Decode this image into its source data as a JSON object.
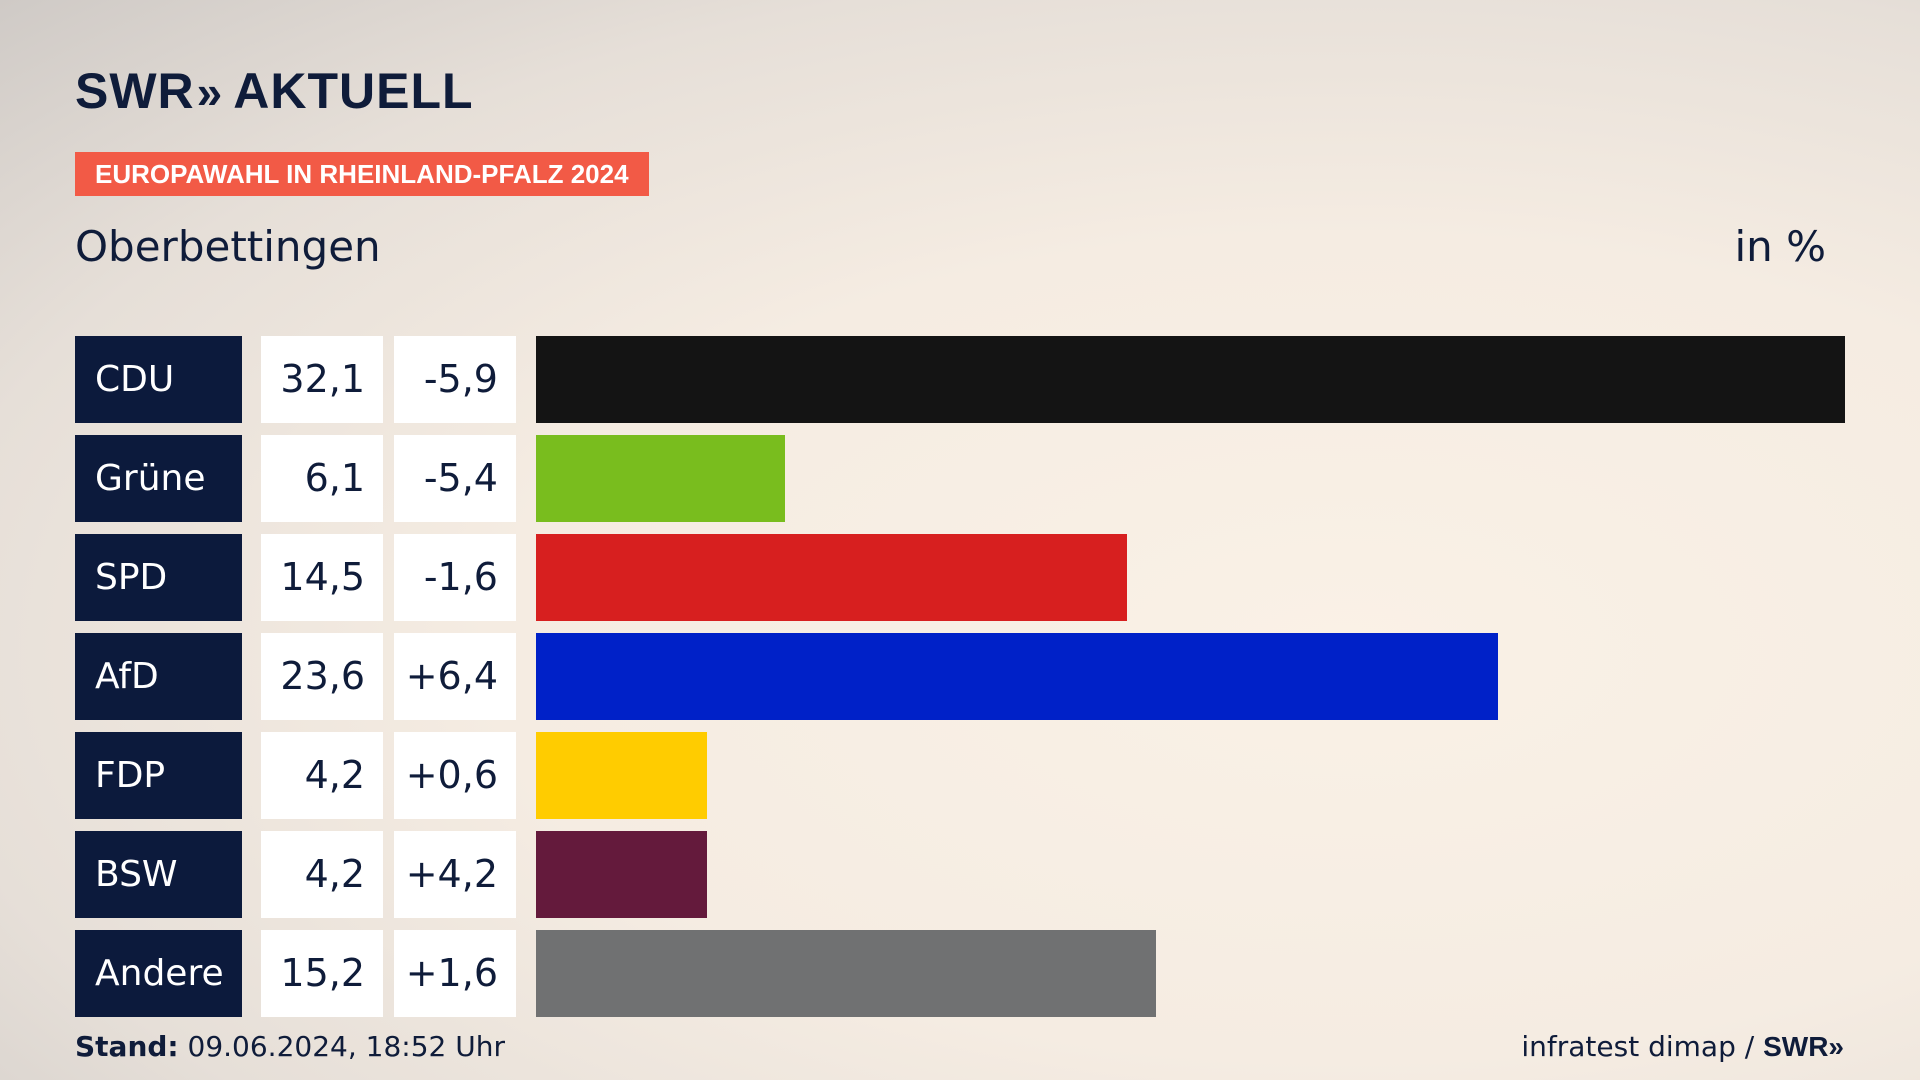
{
  "header": {
    "logo_swr": "SWR",
    "logo_chevrons": "»",
    "logo_aktuell": "AKTUELL",
    "badge": "EUROPAWAHL IN RHEINLAND-PFALZ 2024",
    "place": "Oberbettingen",
    "unit": "in %"
  },
  "chart_data": {
    "type": "bar",
    "orientation": "horizontal",
    "categories": [
      "CDU",
      "Grüne",
      "SPD",
      "AfD",
      "FDP",
      "BSW",
      "Andere"
    ],
    "values": [
      32.1,
      6.1,
      14.5,
      23.6,
      4.2,
      4.2,
      15.2
    ],
    "values_label": [
      "32,1",
      "6,1",
      "14,5",
      "23,6",
      "4,2",
      "4,2",
      "15,2"
    ],
    "diff_label": [
      "-5,9",
      "-5,4",
      "-1,6",
      "+6,4",
      "+0,6",
      "+4,2",
      "+1,6"
    ],
    "colors": [
      "#141414",
      "#79bd1e",
      "#d71f1f",
      "#0021c8",
      "#ffcc00",
      "#641a3c",
      "#707172"
    ],
    "xlim": [
      0,
      32.1
    ]
  },
  "footer": {
    "stand_label": "Stand:",
    "stand_value": " 09.06.2024, 18:52 Uhr",
    "source": "infratest dimap / ",
    "source_logo": "SWR»"
  }
}
